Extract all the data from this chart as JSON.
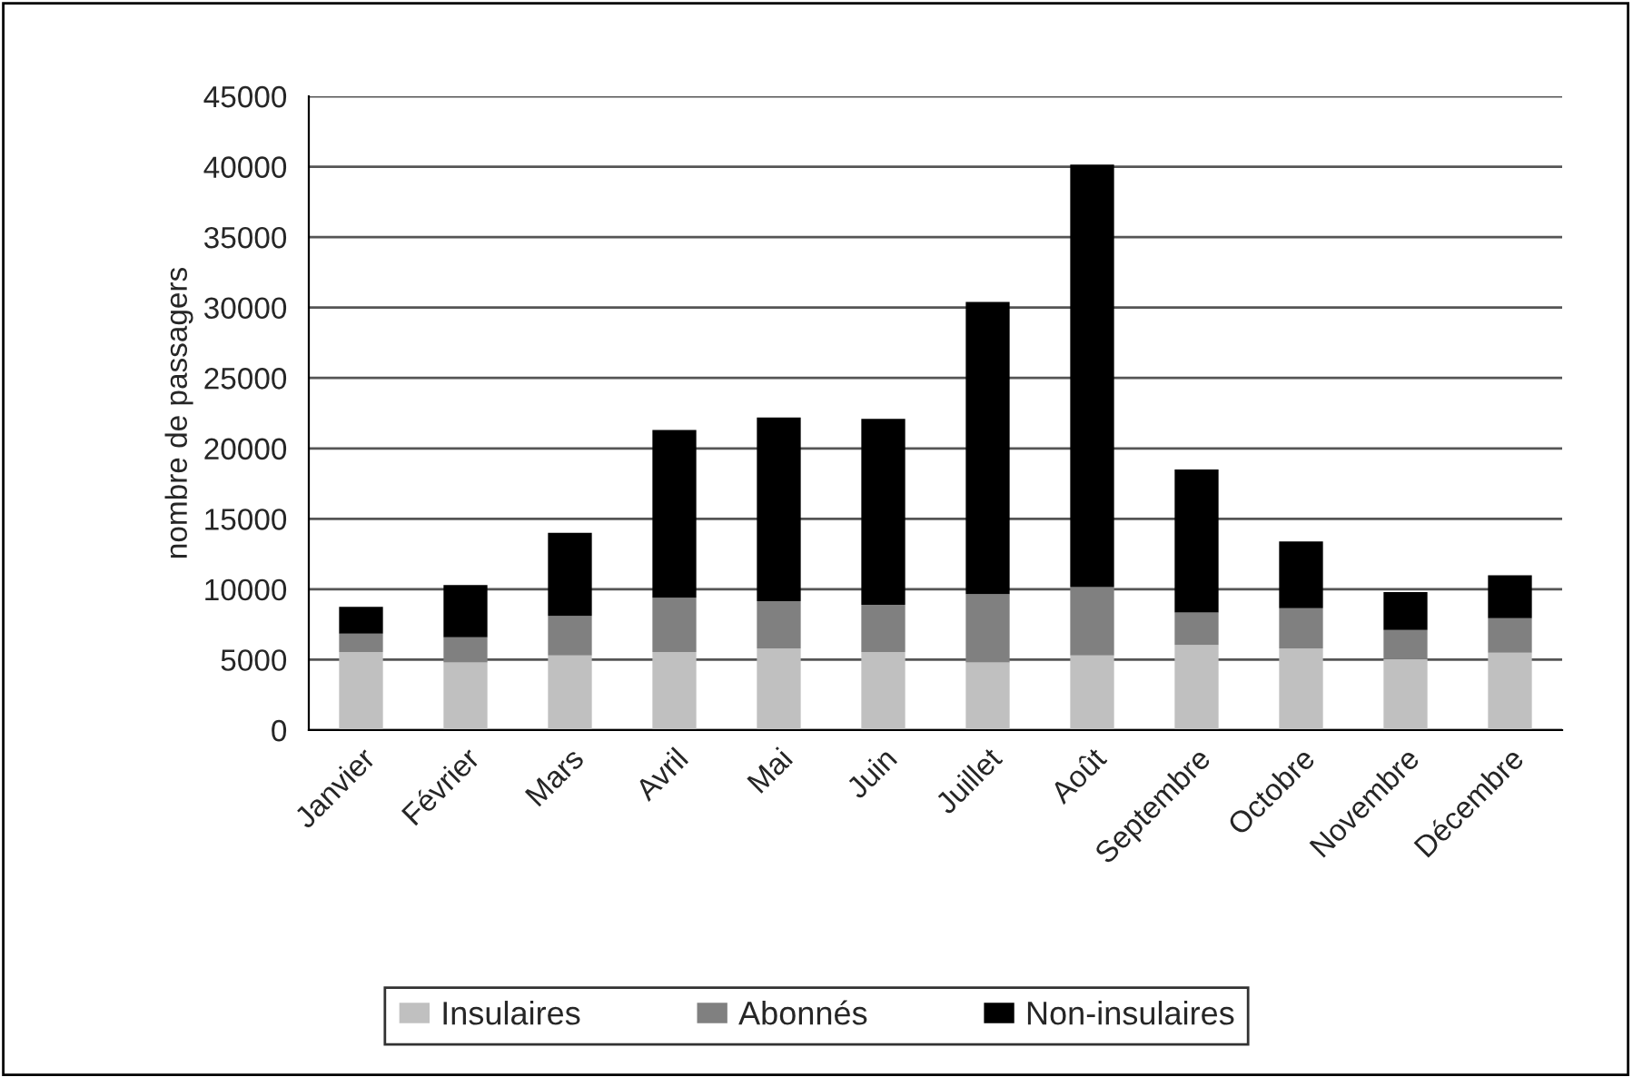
{
  "chart_data": {
    "type": "bar",
    "stacked": true,
    "ylabel": "nombre de passagers",
    "categories": [
      "Janvier",
      "Février",
      "Mars",
      "Avril",
      "Mai",
      "Juin",
      "Juillet",
      "Août",
      "Septembre",
      "Octobre",
      "Novembre",
      "Décembre"
    ],
    "series": [
      {
        "name": "Insulaires",
        "color": "#c0c0c0",
        "values": [
          5550,
          4800,
          5300,
          5550,
          5800,
          5550,
          4800,
          5300,
          6050,
          5800,
          5050,
          5500
        ]
      },
      {
        "name": "Abonnés",
        "color": "#808080",
        "values": [
          1300,
          1800,
          2800,
          3850,
          3350,
          3350,
          4850,
          4850,
          2300,
          2850,
          2050,
          2450
        ]
      },
      {
        "name": "Non-insulaires",
        "color": "#000000",
        "values": [
          1900,
          3700,
          5900,
          11900,
          13050,
          13200,
          20750,
          30000,
          10150,
          4750,
          2700,
          3050
        ]
      }
    ],
    "ylim": [
      0,
      45000
    ],
    "yticks": [
      0,
      5000,
      10000,
      15000,
      20000,
      25000,
      30000,
      35000,
      40000,
      45000
    ],
    "grid": "y",
    "legend": "bottom"
  }
}
